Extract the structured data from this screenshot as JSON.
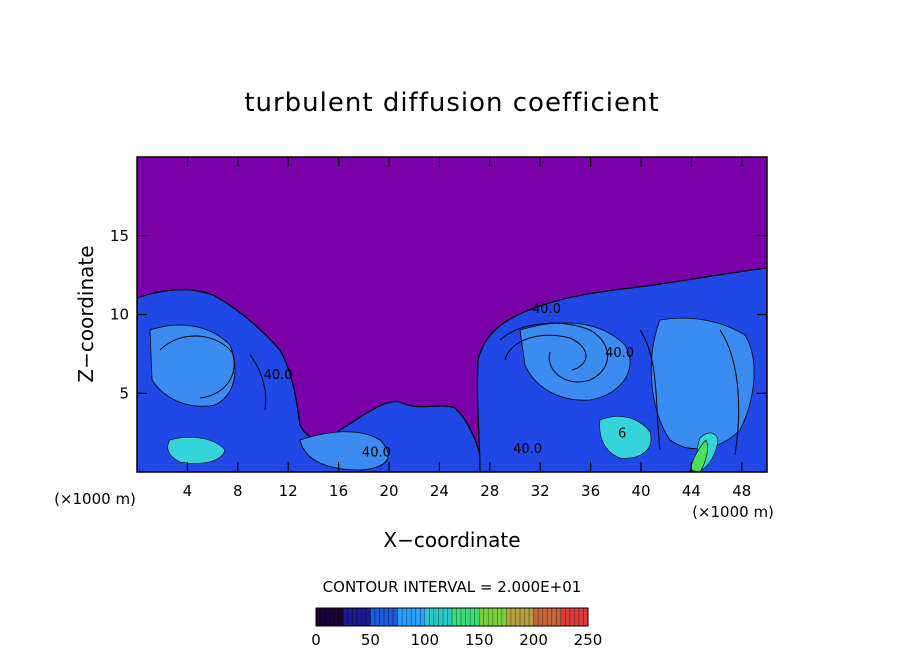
{
  "chart_data": {
    "type": "heatmap",
    "title": "turbulent diffusion coefficient",
    "xlabel": "X−coordinate",
    "ylabel": "Z−coordinate",
    "x_unit_left": "(×1000 m)",
    "x_unit_right": "(×1000 m)",
    "xlim": [
      0,
      50
    ],
    "ylim": [
      0,
      20
    ],
    "x_ticks": [
      4,
      8,
      12,
      16,
      20,
      24,
      28,
      32,
      36,
      40,
      44,
      48
    ],
    "y_ticks": [
      5,
      10,
      15
    ],
    "contour_labels": [
      {
        "text": "40.0",
        "x": 32.5,
        "z": 10.1
      },
      {
        "text": "40.0",
        "x": 38.3,
        "z": 7.3
      },
      {
        "text": "40.0",
        "x": 11.2,
        "z": 5.9
      },
      {
        "text": "40.0",
        "x": 19.0,
        "z": 1.0
      },
      {
        "text": "40.0",
        "x": 31.0,
        "z": 1.2
      },
      {
        "text": "6",
        "x": 38.5,
        "z": 2.2
      }
    ],
    "contour_interval_text": "CONTOUR INTERVAL = 2.000E+01",
    "colorbar": {
      "min": 0,
      "max": 250,
      "ticks": [
        0,
        50,
        100,
        150,
        200,
        250
      ],
      "colors": [
        "#1a0033",
        "#1a1a8c",
        "#1e5adc",
        "#2aa0ff",
        "#28c8c8",
        "#3cdc78",
        "#78d23c",
        "#b4a03c",
        "#c8643c",
        "#dc3c3c"
      ]
    },
    "background_color": "#7a00a8"
  }
}
